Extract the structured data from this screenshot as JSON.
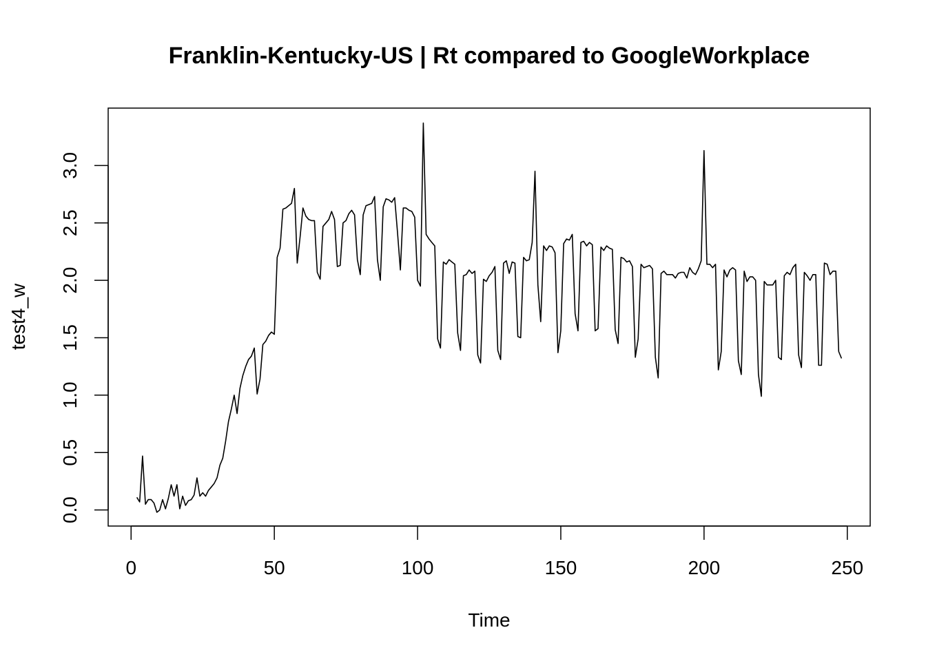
{
  "chart_data": {
    "type": "line",
    "title": "Franklin-Kentucky-US | Rt compared to GoogleWorkplace",
    "xlabel": "Time",
    "ylabel": "test4_w",
    "xlim": [
      -8,
      258
    ],
    "ylim": [
      -0.14,
      3.5
    ],
    "xticks": [
      0,
      50,
      100,
      150,
      200,
      250
    ],
    "yticks": [
      0.0,
      0.5,
      1.0,
      1.5,
      2.0,
      2.5,
      3.0
    ],
    "xtick_labels": [
      "0",
      "50",
      "100",
      "150",
      "200",
      "250"
    ],
    "ytick_labels": [
      "0.0",
      "0.5",
      "1.0",
      "1.5",
      "2.0",
      "2.5",
      "3.0"
    ],
    "grid": false,
    "line_color": "#000000",
    "series": [
      {
        "x_start": 2,
        "values": [
          0.11,
          0.07,
          0.47,
          0.05,
          0.09,
          0.09,
          0.06,
          -0.02,
          0.0,
          0.09,
          0.01,
          0.1,
          0.22,
          0.12,
          0.22,
          0.01,
          0.12,
          0.04,
          0.08,
          0.09,
          0.13,
          0.28,
          0.12,
          0.15,
          0.12,
          0.17,
          0.2,
          0.23,
          0.28,
          0.39,
          0.45,
          0.6,
          0.77,
          0.88,
          1.0,
          0.84,
          1.06,
          1.17,
          1.25,
          1.31,
          1.34,
          1.41,
          1.01,
          1.14,
          1.44,
          1.47,
          1.52,
          1.55,
          1.53,
          2.2,
          2.28,
          2.62,
          2.63,
          2.65,
          2.67,
          2.8,
          2.15,
          2.38,
          2.63,
          2.56,
          2.53,
          2.52,
          2.52,
          2.07,
          2.01,
          2.47,
          2.5,
          2.53,
          2.6,
          2.53,
          2.12,
          2.13,
          2.5,
          2.52,
          2.58,
          2.61,
          2.57,
          2.18,
          2.05,
          2.57,
          2.65,
          2.66,
          2.67,
          2.73,
          2.18,
          2.0,
          2.64,
          2.71,
          2.7,
          2.68,
          2.72,
          2.42,
          2.09,
          2.63,
          2.63,
          2.61,
          2.6,
          2.55,
          2.0,
          1.95,
          3.37,
          2.4,
          2.36,
          2.33,
          2.3,
          1.49,
          1.41,
          2.16,
          2.14,
          2.18,
          2.16,
          2.14,
          1.54,
          1.39,
          2.04,
          2.05,
          2.09,
          2.06,
          2.08,
          1.35,
          1.28,
          2.01,
          1.99,
          2.04,
          2.07,
          2.12,
          1.39,
          1.31,
          2.15,
          2.17,
          2.06,
          2.16,
          2.15,
          1.51,
          1.5,
          2.2,
          2.17,
          2.18,
          2.33,
          2.95,
          1.96,
          1.64,
          2.3,
          2.26,
          2.3,
          2.29,
          2.24,
          1.37,
          1.56,
          2.32,
          2.36,
          2.35,
          2.4,
          1.71,
          1.56,
          2.33,
          2.34,
          2.3,
          2.33,
          2.31,
          1.56,
          1.58,
          2.29,
          2.26,
          2.3,
          2.28,
          2.27,
          1.57,
          1.45,
          2.2,
          2.19,
          2.16,
          2.17,
          2.12,
          1.33,
          1.49,
          2.14,
          2.11,
          2.12,
          2.13,
          2.1,
          1.33,
          1.15,
          2.06,
          2.08,
          2.05,
          2.05,
          2.05,
          2.02,
          2.06,
          2.07,
          2.07,
          2.02,
          2.11,
          2.07,
          2.05,
          2.1,
          2.17,
          3.13,
          2.14,
          2.14,
          2.11,
          2.14,
          1.22,
          1.38,
          2.09,
          2.03,
          2.09,
          2.11,
          2.09,
          1.3,
          1.18,
          2.08,
          1.99,
          2.03,
          2.03,
          2.0,
          1.18,
          0.99,
          1.99,
          1.96,
          1.96,
          1.96,
          2.0,
          1.33,
          1.31,
          2.04,
          2.07,
          2.05,
          2.11,
          2.14,
          1.35,
          1.24,
          2.07,
          2.04,
          2.0,
          2.05,
          2.05,
          1.26,
          1.26,
          2.15,
          2.14,
          2.05,
          2.08,
          2.08,
          1.38,
          1.32
        ]
      }
    ]
  }
}
